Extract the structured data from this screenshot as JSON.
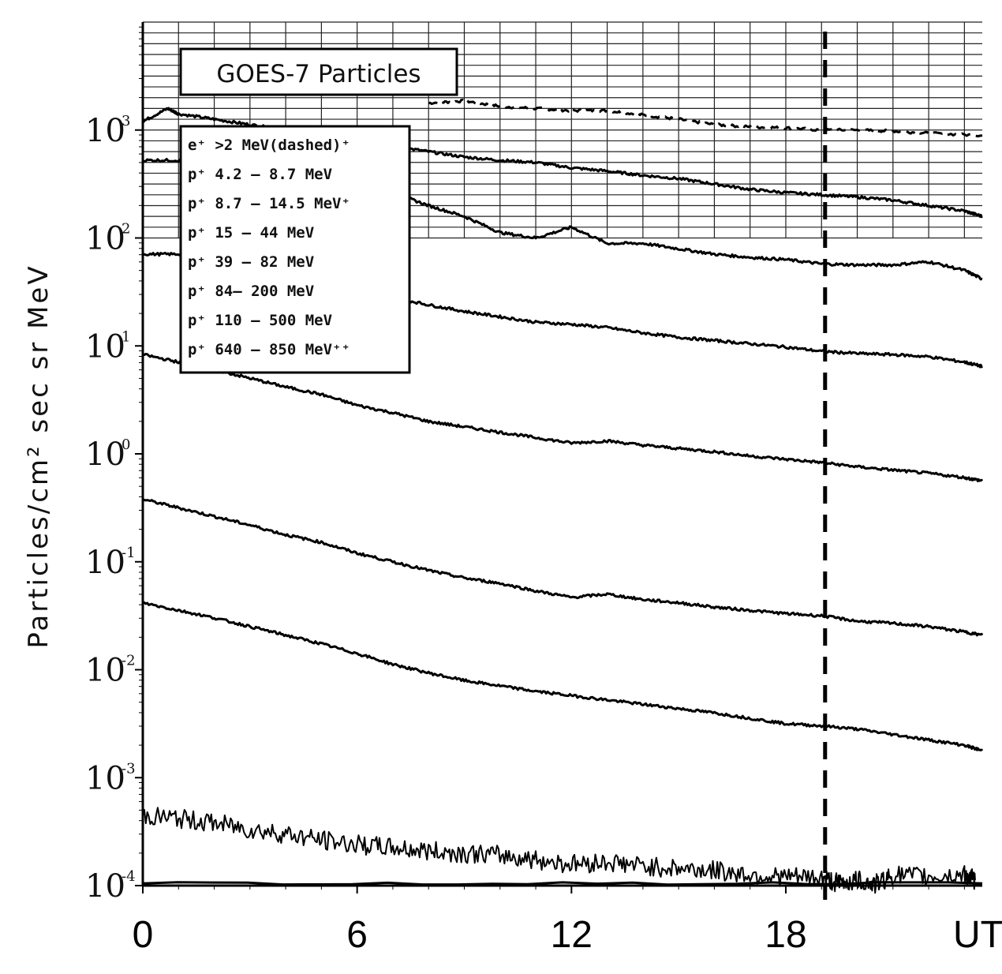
{
  "chart_data": {
    "type": "line",
    "title": "GOES-7 Particles",
    "ylabel": "Particles/cm² sec sr MeV",
    "xlabel": "UT",
    "x_range": [
      0,
      23.5
    ],
    "x_ticks": [
      "0",
      "6",
      "12",
      "18"
    ],
    "y_scale": "log",
    "y_range_exponent": [
      -4,
      4
    ],
    "y_ticks": [
      {
        "base": "10",
        "exp": "3"
      },
      {
        "base": "10",
        "exp": "2"
      },
      {
        "base": "10",
        "exp": "1"
      },
      {
        "base": "10",
        "exp": "0"
      },
      {
        "base": "10",
        "exp": "-1"
      },
      {
        "base": "10",
        "exp": "-2"
      },
      {
        "base": "10",
        "exp": "-3"
      },
      {
        "base": "10",
        "exp": "-4"
      }
    ],
    "legend": [
      "e⁺ >2 MeV(dashed)⁺",
      "p⁺ 4.2 – 8.7 MeV",
      "p⁺ 8.7 – 14.5 MeV⁺",
      "p⁺ 15 – 44 MeV",
      "p⁺ 39 – 82 MeV",
      "p⁺ 84– 200 MeV",
      "p⁺ 110 – 500 MeV",
      "p⁺ 640 – 850 MeV⁺⁺"
    ],
    "vertical_marker_x": 19.1,
    "series": [
      {
        "style": "dashed",
        "x": [
          8,
          9,
          10,
          11,
          12,
          13,
          14,
          15,
          16,
          17,
          18,
          19,
          20,
          21,
          22,
          23.5
        ],
        "y": [
          3.25,
          3.27,
          3.22,
          3.2,
          3.18,
          3.18,
          3.14,
          3.1,
          3.05,
          3.03,
          3.02,
          3.0,
          3.0,
          2.99,
          2.97,
          2.95
        ]
      },
      {
        "style": "solid",
        "x": [
          0,
          0.7,
          1,
          2,
          3,
          4,
          5,
          6,
          7,
          8,
          9,
          10,
          11,
          12,
          13,
          14,
          15,
          16,
          17,
          18,
          19,
          20,
          21,
          22,
          23,
          23.5
        ],
        "y": [
          3.08,
          3.2,
          3.15,
          3.1,
          3.05,
          3.0,
          2.95,
          2.9,
          2.85,
          2.8,
          2.75,
          2.72,
          2.7,
          2.65,
          2.62,
          2.58,
          2.55,
          2.5,
          2.45,
          2.42,
          2.4,
          2.38,
          2.35,
          2.3,
          2.25,
          2.2
        ]
      },
      {
        "style": "solid",
        "x": [
          0,
          1,
          2,
          3,
          4,
          5,
          6,
          7,
          8,
          9,
          10,
          11,
          12,
          13,
          14,
          15,
          16,
          17,
          18,
          19,
          20,
          21,
          22,
          23,
          23.5
        ],
        "y": [
          2.72,
          2.72,
          2.7,
          2.65,
          2.6,
          2.55,
          2.5,
          2.42,
          2.3,
          2.2,
          2.05,
          2.0,
          2.1,
          1.95,
          1.95,
          1.9,
          1.85,
          1.82,
          1.8,
          1.76,
          1.75,
          1.75,
          1.78,
          1.7,
          1.62
        ]
      },
      {
        "style": "solid",
        "x": [
          0,
          1,
          2,
          3,
          4,
          5,
          6,
          7,
          8,
          9,
          10,
          11,
          12,
          13,
          14,
          15,
          16,
          17,
          18,
          19,
          20,
          21,
          22,
          23,
          23.5
        ],
        "y": [
          1.85,
          1.85,
          1.8,
          1.72,
          1.65,
          1.6,
          1.52,
          1.45,
          1.38,
          1.32,
          1.27,
          1.22,
          1.2,
          1.17,
          1.12,
          1.08,
          1.05,
          1.02,
          0.99,
          0.95,
          0.93,
          0.92,
          0.9,
          0.85,
          0.81
        ]
      },
      {
        "style": "solid",
        "x": [
          0,
          1,
          2,
          3,
          4,
          5,
          6,
          7,
          8,
          9,
          10,
          11,
          12,
          13,
          14,
          15,
          16,
          17,
          18,
          19,
          20,
          21,
          22,
          23,
          23.5
        ],
        "y": [
          0.92,
          0.85,
          0.78,
          0.7,
          0.62,
          0.55,
          0.45,
          0.38,
          0.3,
          0.25,
          0.2,
          0.15,
          0.1,
          0.12,
          0.08,
          0.05,
          0.02,
          -0.02,
          -0.05,
          -0.08,
          -0.12,
          -0.15,
          -0.18,
          -0.22,
          -0.25
        ]
      },
      {
        "style": "solid",
        "x": [
          0,
          1,
          2,
          3,
          4,
          5,
          6,
          7,
          8,
          9,
          10,
          11,
          12,
          13,
          14,
          15,
          16,
          17,
          18,
          19,
          20,
          21,
          22,
          23,
          23.5
        ],
        "y": [
          -0.42,
          -0.5,
          -0.58,
          -0.66,
          -0.75,
          -0.82,
          -0.92,
          -1.0,
          -1.08,
          -1.15,
          -1.2,
          -1.27,
          -1.33,
          -1.3,
          -1.35,
          -1.38,
          -1.42,
          -1.45,
          -1.48,
          -1.5,
          -1.55,
          -1.57,
          -1.6,
          -1.65,
          -1.68
        ]
      },
      {
        "style": "solid",
        "x": [
          0,
          1,
          2,
          3,
          4,
          5,
          6,
          7,
          8,
          9,
          10,
          11,
          12,
          13,
          14,
          15,
          16,
          17,
          18,
          19,
          20,
          21,
          22,
          23,
          23.5
        ],
        "y": [
          -1.38,
          -1.45,
          -1.52,
          -1.6,
          -1.68,
          -1.76,
          -1.85,
          -1.95,
          -2.03,
          -2.1,
          -2.15,
          -2.2,
          -2.24,
          -2.28,
          -2.32,
          -2.36,
          -2.4,
          -2.45,
          -2.5,
          -2.52,
          -2.55,
          -2.6,
          -2.65,
          -2.7,
          -2.75
        ]
      },
      {
        "style": "noisy",
        "x": [
          0,
          1,
          2,
          3,
          4,
          5,
          6,
          7,
          8,
          9,
          10,
          11,
          12,
          13,
          14,
          15,
          16,
          17,
          18,
          19,
          19.5,
          20,
          20.5,
          21,
          22,
          23,
          23.3
        ],
        "y": [
          -3.35,
          -3.38,
          -3.42,
          -3.48,
          -3.52,
          -3.58,
          -3.62,
          -3.65,
          -3.68,
          -3.7,
          -3.72,
          -3.76,
          -3.8,
          -3.78,
          -3.82,
          -3.84,
          -3.86,
          -3.9,
          -3.92,
          -3.93,
          -3.98,
          -3.95,
          -3.99,
          -3.9,
          -3.92,
          -3.9,
          -3.95
        ]
      },
      {
        "style": "solid",
        "x": [
          0,
          23.5
        ],
        "y": [
          -3.98,
          -3.98
        ]
      }
    ]
  }
}
